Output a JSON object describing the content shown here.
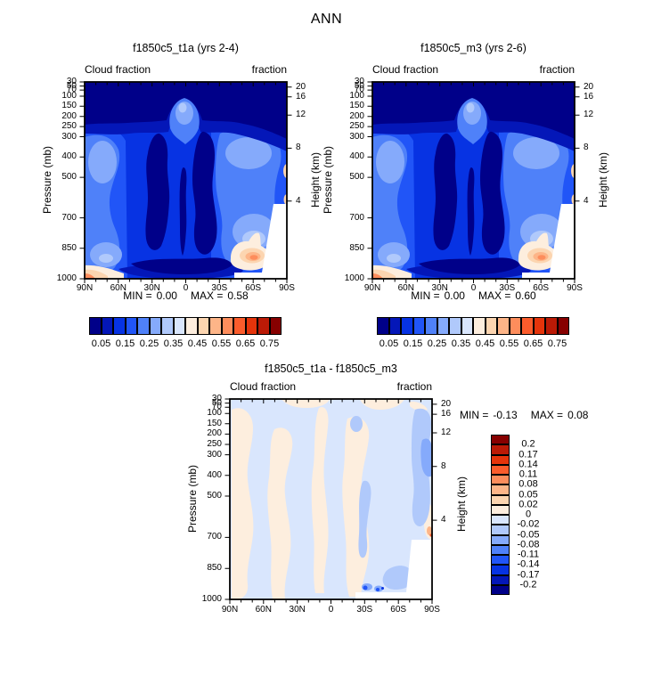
{
  "title": "ANN",
  "palette": [
    "#000089",
    "#0417b8",
    "#0733e3",
    "#2155f7",
    "#4f81f9",
    "#85aafb",
    "#b0c9fb",
    "#d9e6fd",
    "#fdeede",
    "#fcd5b0",
    "#fdb588",
    "#fd8d5c",
    "#fb5c2c",
    "#e5340b",
    "#bb1a06",
    "#870000"
  ],
  "axis": {
    "pressure_label": "Pressure (mb)",
    "height_label": "Height (km)",
    "header_left": "Cloud fraction",
    "header_right": "fraction",
    "pticks": [
      "30",
      "50",
      "70",
      "100",
      "150",
      "200",
      "250",
      "300",
      "400",
      "500",
      "700",
      "850",
      "1000"
    ],
    "hticks": [
      "20",
      "16",
      "12",
      "8",
      "4"
    ],
    "xticks": [
      "90N",
      "60N",
      "30N",
      "0",
      "30S",
      "60S",
      "90S"
    ]
  },
  "panel1": {
    "title": "f1850c5_t1a (yrs 2-4)",
    "stats": {
      "min_label": "MIN =",
      "min": "0.00",
      "max_label": "MAX =",
      "max": "0.58"
    }
  },
  "panel2": {
    "title": "f1850c5_m3 (yrs 2-6)",
    "stats": {
      "min_label": "MIN =",
      "min": "0.00",
      "max_label": "MAX =",
      "max": "0.60"
    }
  },
  "diff": {
    "title": "f1850c5_t1a - f1850c5_m3",
    "stats": {
      "min_label": "MIN =",
      "min": "-0.13",
      "max_label": "MAX =",
      "max": "0.08"
    }
  },
  "colorbar_fraction_labels": [
    "0.05",
    "0.15",
    "0.25",
    "0.35",
    "0.45",
    "0.55",
    "0.65",
    "0.75"
  ],
  "colorbar_diff_labels": [
    "0.2",
    "0.17",
    "0.14",
    "0.11",
    "0.08",
    "0.05",
    "0.02",
    "0",
    "-0.02",
    "-0.05",
    "-0.08",
    "-0.11",
    "-0.14",
    "-0.17",
    "-0.2"
  ],
  "chart_data": [
    {
      "type": "contour",
      "title": "f1850c5_t1a (yrs 2-4)",
      "suptitle": "ANN",
      "field": "Cloud fraction",
      "units": "fraction",
      "x_axis": {
        "ticks": [
          "90N",
          "60N",
          "30N",
          "0",
          "30S",
          "60S",
          "90S"
        ],
        "range": "90N to 90S"
      },
      "y_axis_left": {
        "label": "Pressure (mb)",
        "ticks": [
          30,
          50,
          70,
          100,
          150,
          200,
          250,
          300,
          400,
          500,
          700,
          850,
          1000
        ],
        "scale": "linear 30-1000 mb, top=30"
      },
      "y_axis_right": {
        "label": "Height (km)",
        "ticks": [
          20,
          16,
          12,
          8,
          4
        ]
      },
      "contour_levels": [
        0.05,
        0.1,
        0.15,
        0.2,
        0.25,
        0.3,
        0.35,
        0.4,
        0.45,
        0.5,
        0.55,
        0.6,
        0.65,
        0.7,
        0.75
      ],
      "min": 0.0,
      "max": 0.58,
      "colormap": "16-level blue-white-red, labels every 0.10 from 0.05 to 0.75",
      "features": [
        "tropical upper-troposphere cloud maximum near 150-200 mb over the equator",
        "dark low-cloud-fraction minima above 100 mb and in subtropical mid-troposphere (~20N and ~20S, 250-900 mb)",
        "enhanced cloud columns in midlatitude storm tracks (~60N, ~55S)",
        "absolute maximum ~0.58 near 60S at 850-950 mb (cream/orange blob)",
        "small near-surface maximum at 90N near 1000 mb",
        "white terrain mask over Antarctica (lower right of panel)"
      ]
    },
    {
      "type": "contour",
      "title": "f1850c5_m3 (yrs 2-6)",
      "suptitle": "ANN",
      "field": "Cloud fraction",
      "units": "fraction",
      "x_axis": {
        "ticks": [
          "90N",
          "60N",
          "30N",
          "0",
          "30S",
          "60S",
          "90S"
        ],
        "range": "90N to 90S"
      },
      "y_axis_left": {
        "label": "Pressure (mb)",
        "ticks": [
          30,
          50,
          70,
          100,
          150,
          200,
          250,
          300,
          400,
          500,
          700,
          850,
          1000
        ],
        "scale": "linear 30-1000 mb, top=30"
      },
      "y_axis_right": {
        "label": "Height (km)",
        "ticks": [
          20,
          16,
          12,
          8,
          4
        ]
      },
      "contour_levels": [
        0.05,
        0.1,
        0.15,
        0.2,
        0.25,
        0.3,
        0.35,
        0.4,
        0.45,
        0.5,
        0.55,
        0.6,
        0.65,
        0.7,
        0.75
      ],
      "min": 0.0,
      "max": 0.6,
      "colormap": "16-level blue-white-red, labels every 0.10 from 0.05 to 0.75",
      "features": [
        "pattern nearly identical to f1850c5_t1a panel",
        "absolute maximum ~0.60 near 60S at 850-950 mb"
      ]
    },
    {
      "type": "contour",
      "title": "f1850c5_t1a - f1850c5_m3",
      "field": "Cloud fraction difference",
      "units": "fraction",
      "x_axis": {
        "ticks": [
          "90N",
          "60N",
          "30N",
          "0",
          "30S",
          "60S",
          "90S"
        ],
        "range": "90N to 90S"
      },
      "y_axis_left": {
        "label": "Pressure (mb)",
        "ticks": [
          30,
          50,
          70,
          100,
          150,
          200,
          250,
          300,
          400,
          500,
          700,
          850,
          1000
        ],
        "scale": "linear 30-1000 mb, top=30"
      },
      "y_axis_right": {
        "label": "Height (km)",
        "ticks": [
          20,
          16,
          12,
          8,
          4
        ]
      },
      "contour_levels": [
        -0.2,
        -0.17,
        -0.14,
        -0.11,
        -0.08,
        -0.05,
        -0.02,
        0,
        0.02,
        0.05,
        0.08,
        0.11,
        0.14,
        0.17,
        0.2
      ],
      "min": -0.13,
      "max": 0.08,
      "colormap": "16-level blue-white-red vertical colorbar, dark red (0.2) at top to dark blue (-0.2) at bottom",
      "features": [
        "field mostly within -0.02 to +0.02 (pale blue / pale cream patches)",
        "negative differences down to ~-0.13 near the South Pole mid-levels and near 60-70S close to the surface",
        "small positive sliver at 90S near 600-700 mb",
        "white terrain mask over Antarctica (lower right)"
      ]
    }
  ]
}
